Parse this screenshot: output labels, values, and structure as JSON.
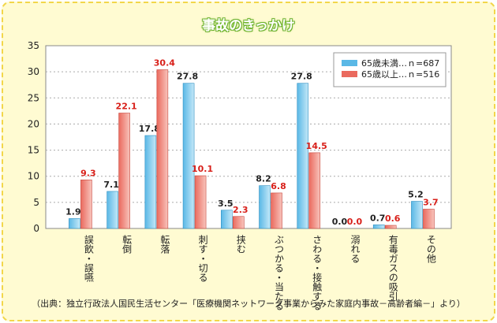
{
  "title": "事故のきっかけ",
  "source": "（出典：独立行政法人国民生活センター「医療機関ネットワーク事業からみた家庭内事故－高齢者編－」より）",
  "chart_data": {
    "type": "bar",
    "title": "事故のきっかけ",
    "categories": [
      "誤飲・誤嚥",
      "転倒",
      "転落",
      "刺す・切る",
      "挟む",
      "ぶつかる・当たる",
      "さわる・接触する",
      "溺れる",
      "有毒ガスの吸引",
      "その他"
    ],
    "series": [
      {
        "name": "65歳未満…ｎ=687",
        "color": "#5ab8e6",
        "values": [
          1.9,
          7.1,
          17.8,
          27.8,
          3.5,
          8.2,
          27.8,
          0.0,
          0.7,
          5.2
        ]
      },
      {
        "name": "65歳以上…ｎ=516",
        "color": "#ea6a5e",
        "values": [
          9.3,
          22.1,
          30.4,
          10.1,
          2.3,
          6.8,
          14.5,
          0.0,
          0.6,
          3.7
        ]
      }
    ],
    "ylim": [
      0,
      35
    ],
    "yticks": [
      "0",
      "5",
      "10",
      "15",
      "20",
      "25",
      "30",
      "35"
    ],
    "grid": true,
    "legend": "top-right"
  }
}
